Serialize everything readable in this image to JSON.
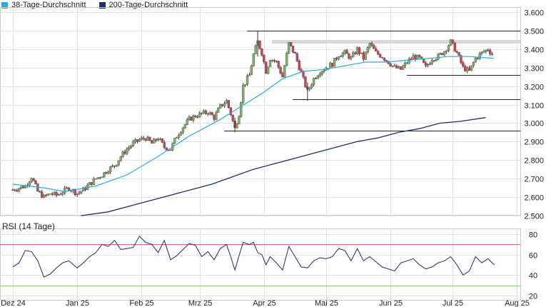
{
  "legend": {
    "ma38": {
      "label": "38-Tage-Durchschnitt",
      "color": "#29abe2"
    },
    "ma200": {
      "label": "200-Tage-Durchschnitt",
      "color": "#1f2d6e"
    }
  },
  "rsi_label": "RSI (14 Tage)",
  "colors": {
    "up": "#7fae6a",
    "down": "#d0404a",
    "wick": "#333333",
    "grid": "#e2e2e2",
    "rsi_line": "#1f2d6e",
    "rsi_upper": "#d86666",
    "rsi_lower": "#8cc97a"
  },
  "chart_data": [
    {
      "type": "candlestick",
      "x_tick_labels": [
        "Dez 24",
        "Jan 25",
        "Feb 25",
        "Mrz 25",
        "Apr 25",
        "Mai 25",
        "Jun 25",
        "Jul 25",
        "Aug 25"
      ],
      "y_ticks": [
        2.5,
        2.6,
        2.7,
        2.8,
        2.9,
        3.0,
        3.1,
        3.2,
        3.3,
        3.4,
        3.5,
        3.6
      ],
      "y_tick_labels": [
        "2.500",
        "2.600",
        "2.700",
        "2.800",
        "2.900",
        "3.000",
        "3.100",
        "3.200",
        "3.300",
        "3.400",
        "3.500",
        "3.600"
      ],
      "ylim": [
        2.5,
        3.6
      ],
      "x_range_days": [
        0,
        248
      ],
      "candle_anchors": [
        [
          0,
          2.64
        ],
        [
          3,
          2.65
        ],
        [
          6,
          2.66
        ],
        [
          9,
          2.71
        ],
        [
          12,
          2.63
        ],
        [
          15,
          2.6
        ],
        [
          18,
          2.62
        ],
        [
          21,
          2.61
        ],
        [
          24,
          2.63
        ],
        [
          27,
          2.65
        ],
        [
          31,
          2.62
        ],
        [
          34,
          2.64
        ],
        [
          37,
          2.67
        ],
        [
          40,
          2.7
        ],
        [
          43,
          2.72
        ],
        [
          46,
          2.75
        ],
        [
          49,
          2.77
        ],
        [
          52,
          2.82
        ],
        [
          55,
          2.86
        ],
        [
          58,
          2.89
        ],
        [
          61,
          2.91
        ],
        [
          64,
          2.92
        ],
        [
          67,
          2.89
        ],
        [
          70,
          2.92
        ],
        [
          73,
          2.87
        ],
        [
          76,
          2.86
        ],
        [
          79,
          2.93
        ],
        [
          82,
          2.98
        ],
        [
          85,
          3.02
        ],
        [
          88,
          3.04
        ],
        [
          91,
          3.05
        ],
        [
          94,
          3.06
        ],
        [
          97,
          3.03
        ],
        [
          100,
          3.09
        ],
        [
          103,
          3.12
        ],
        [
          105,
          3.05
        ],
        [
          107,
          2.97
        ],
        [
          109,
          3.05
        ],
        [
          111,
          3.2
        ],
        [
          114,
          3.26
        ],
        [
          116,
          3.37
        ],
        [
          118,
          3.44
        ],
        [
          120,
          3.38
        ],
        [
          122,
          3.28
        ],
        [
          124,
          3.35
        ],
        [
          127,
          3.33
        ],
        [
          130,
          3.25
        ],
        [
          133,
          3.43
        ],
        [
          136,
          3.37
        ],
        [
          139,
          3.27
        ],
        [
          142,
          3.17
        ],
        [
          145,
          3.24
        ],
        [
          148,
          3.28
        ],
        [
          151,
          3.3
        ],
        [
          154,
          3.32
        ],
        [
          157,
          3.37
        ],
        [
          160,
          3.38
        ],
        [
          163,
          3.35
        ],
        [
          166,
          3.4
        ],
        [
          169,
          3.35
        ],
        [
          172,
          3.43
        ],
        [
          175,
          3.38
        ],
        [
          178,
          3.36
        ],
        [
          181,
          3.33
        ],
        [
          184,
          3.3
        ],
        [
          187,
          3.29
        ],
        [
          190,
          3.33
        ],
        [
          193,
          3.36
        ],
        [
          196,
          3.35
        ],
        [
          199,
          3.3
        ],
        [
          202,
          3.35
        ],
        [
          205,
          3.36
        ],
        [
          208,
          3.39
        ],
        [
          211,
          3.44
        ],
        [
          214,
          3.38
        ],
        [
          217,
          3.3
        ],
        [
          220,
          3.28
        ],
        [
          223,
          3.35
        ],
        [
          226,
          3.38
        ],
        [
          229,
          3.4
        ],
        [
          232,
          3.36
        ]
      ],
      "ma38": [
        [
          0,
          2.67
        ],
        [
          15,
          2.65
        ],
        [
          25,
          2.63
        ],
        [
          40,
          2.66
        ],
        [
          55,
          2.72
        ],
        [
          70,
          2.82
        ],
        [
          85,
          2.93
        ],
        [
          100,
          3.02
        ],
        [
          110,
          3.09
        ],
        [
          120,
          3.16
        ],
        [
          130,
          3.24
        ],
        [
          140,
          3.28
        ],
        [
          150,
          3.29
        ],
        [
          160,
          3.31
        ],
        [
          170,
          3.33
        ],
        [
          180,
          3.33
        ],
        [
          190,
          3.34
        ],
        [
          200,
          3.35
        ],
        [
          210,
          3.36
        ],
        [
          220,
          3.36
        ],
        [
          232,
          3.35
        ]
      ],
      "ma200": [
        [
          37,
          2.5
        ],
        [
          50,
          2.52
        ],
        [
          60,
          2.55
        ],
        [
          70,
          2.58
        ],
        [
          80,
          2.61
        ],
        [
          90,
          2.64
        ],
        [
          100,
          2.67
        ],
        [
          110,
          2.71
        ],
        [
          120,
          2.75
        ],
        [
          130,
          2.78
        ],
        [
          140,
          2.81
        ],
        [
          150,
          2.84
        ],
        [
          160,
          2.87
        ],
        [
          170,
          2.9
        ],
        [
          180,
          2.92
        ],
        [
          190,
          2.95
        ],
        [
          200,
          2.97
        ],
        [
          210,
          3.0
        ],
        [
          220,
          3.01
        ],
        [
          232,
          3.03
        ]
      ],
      "horizontal_levels": [
        {
          "y": 3.5,
          "x_from": 117,
          "x_to": 248,
          "style": "line"
        },
        {
          "y": 3.44,
          "x_from": 129,
          "x_to": 248,
          "style": "band"
        },
        {
          "y": 3.26,
          "x_from": 194,
          "x_to": 248,
          "style": "line"
        },
        {
          "y": 3.13,
          "x_from": 139,
          "x_to": 248,
          "style": "line"
        },
        {
          "y": 2.96,
          "x_from": 106,
          "x_to": 248,
          "style": "line"
        }
      ]
    },
    {
      "type": "line",
      "title": "RSI (14 Tage)",
      "y_ticks": [
        20,
        40,
        60,
        80
      ],
      "y_tick_labels": [
        "20",
        "40",
        "60",
        "80"
      ],
      "ylim": [
        20,
        80
      ],
      "reference_lines": [
        70,
        30
      ],
      "x_range_days": [
        0,
        248
      ],
      "x": [
        0,
        3,
        6,
        9,
        12,
        15,
        18,
        21,
        24,
        27,
        31,
        34,
        37,
        40,
        43,
        46,
        49,
        52,
        55,
        58,
        61,
        64,
        67,
        70,
        73,
        76,
        79,
        82,
        85,
        88,
        91,
        94,
        97,
        100,
        103,
        105,
        107,
        109,
        111,
        114,
        116,
        118,
        120,
        122,
        124,
        127,
        130,
        133,
        136,
        139,
        142,
        145,
        148,
        151,
        154,
        157,
        160,
        163,
        166,
        169,
        172,
        175,
        178,
        181,
        184,
        187,
        190,
        193,
        196,
        199,
        202,
        205,
        208,
        211,
        214,
        217,
        220,
        223,
        226,
        229,
        232
      ],
      "values": [
        48,
        52,
        64,
        63,
        54,
        38,
        41,
        47,
        52,
        54,
        47,
        52,
        58,
        62,
        70,
        68,
        74,
        65,
        66,
        67,
        78,
        72,
        70,
        62,
        74,
        55,
        59,
        65,
        71,
        69,
        58,
        63,
        55,
        66,
        70,
        58,
        45,
        59,
        72,
        70,
        72,
        62,
        60,
        50,
        58,
        52,
        45,
        68,
        58,
        48,
        47,
        54,
        57,
        56,
        58,
        66,
        64,
        54,
        66,
        54,
        58,
        53,
        48,
        46,
        44,
        52,
        54,
        56,
        50,
        46,
        48,
        52,
        54,
        58,
        50,
        40,
        44,
        58,
        52,
        56,
        50
      ]
    }
  ]
}
